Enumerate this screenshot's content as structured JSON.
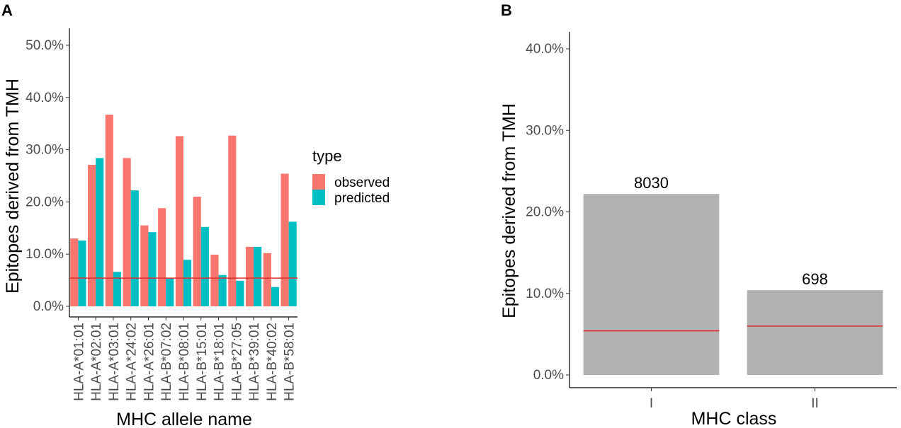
{
  "chart_data": [
    {
      "panel": "A",
      "type": "bar",
      "ylabel": "Epitopes derived from TMH",
      "xlabel": "MHC allele name",
      "ylim": [
        0,
        52
      ],
      "yticks": [
        0,
        10,
        20,
        30,
        40,
        50
      ],
      "ytick_labels": [
        "0.0%",
        "10.0%",
        "20.0%",
        "30.0%",
        "40.0%",
        "50.0%"
      ],
      "categories": [
        "HLA-A*01:01",
        "HLA-A*02:01",
        "HLA-A*03:01",
        "HLA-A*24:02",
        "HLA-A*26:01",
        "HLA-B*07:02",
        "HLA-B*08:01",
        "HLA-B*15:01",
        "HLA-B*18:01",
        "HLA-B*27:05",
        "HLA-B*39:01",
        "HLA-B*40:02",
        "HLA-B*58:01"
      ],
      "series": [
        {
          "name": "observed",
          "color": "#F8766D",
          "values": [
            13.0,
            27.1,
            36.7,
            28.4,
            15.5,
            18.8,
            32.6,
            21.0,
            9.9,
            32.7,
            11.4,
            10.2,
            25.4
          ]
        },
        {
          "name": "predicted",
          "color": "#00BFC4",
          "values": [
            12.6,
            28.4,
            6.6,
            22.2,
            14.2,
            5.4,
            8.9,
            15.2,
            6.0,
            4.9,
            11.4,
            3.7,
            16.2
          ]
        }
      ],
      "reference_line": {
        "value": 5.4,
        "color": "#e0302e"
      },
      "legend": {
        "title": "type",
        "entries": [
          "observed",
          "predicted"
        ]
      }
    },
    {
      "panel": "B",
      "type": "bar",
      "ylabel": "Epitopes derived from TMH",
      "xlabel": "MHC class",
      "ylim": [
        0,
        41.5
      ],
      "yticks": [
        0,
        10,
        20,
        30,
        40
      ],
      "ytick_labels": [
        "0.0%",
        "10.0%",
        "20.0%",
        "30.0%",
        "40.0%"
      ],
      "categories": [
        "I",
        "II"
      ],
      "values": [
        22.2,
        10.4
      ],
      "bar_labels": [
        "8030",
        "698"
      ],
      "bar_color": "#b2b2b2",
      "reference_values": [
        5.4,
        6.0
      ],
      "reference_color": "#e0302e"
    }
  ]
}
